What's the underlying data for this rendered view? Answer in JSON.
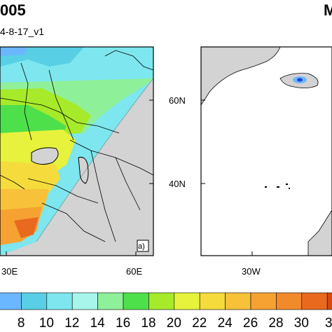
{
  "left_panel": {
    "title_fragment": "005",
    "subtitle_fragment": "4-8-17_v1",
    "panel_label": "a)",
    "lat_ticks": [
      "60N",
      "40N"
    ],
    "lon_ticks": [
      "30E",
      "60E"
    ]
  },
  "right_panel": {
    "title_fragment": "M",
    "lon_ticks": [
      "30W"
    ]
  },
  "colorbar": {
    "labels": [
      "8",
      "10",
      "12",
      "14",
      "16",
      "18",
      "20",
      "22",
      "24",
      "26",
      "28",
      "30"
    ],
    "colors": [
      "#6bb7ff",
      "#58cfe4",
      "#7de6ee",
      "#a8f5ec",
      "#8ff09a",
      "#4ee04a",
      "#a7ea2a",
      "#e6f23c",
      "#f5dc3c",
      "#f7c23a",
      "#f5a232",
      "#f08a2a",
      "#e9691f",
      "#d64a10"
    ],
    "trailing_label_fragment": "3"
  },
  "legend_colors": {
    "land_masked": "#d3d3d3",
    "coast": "#000000"
  }
}
